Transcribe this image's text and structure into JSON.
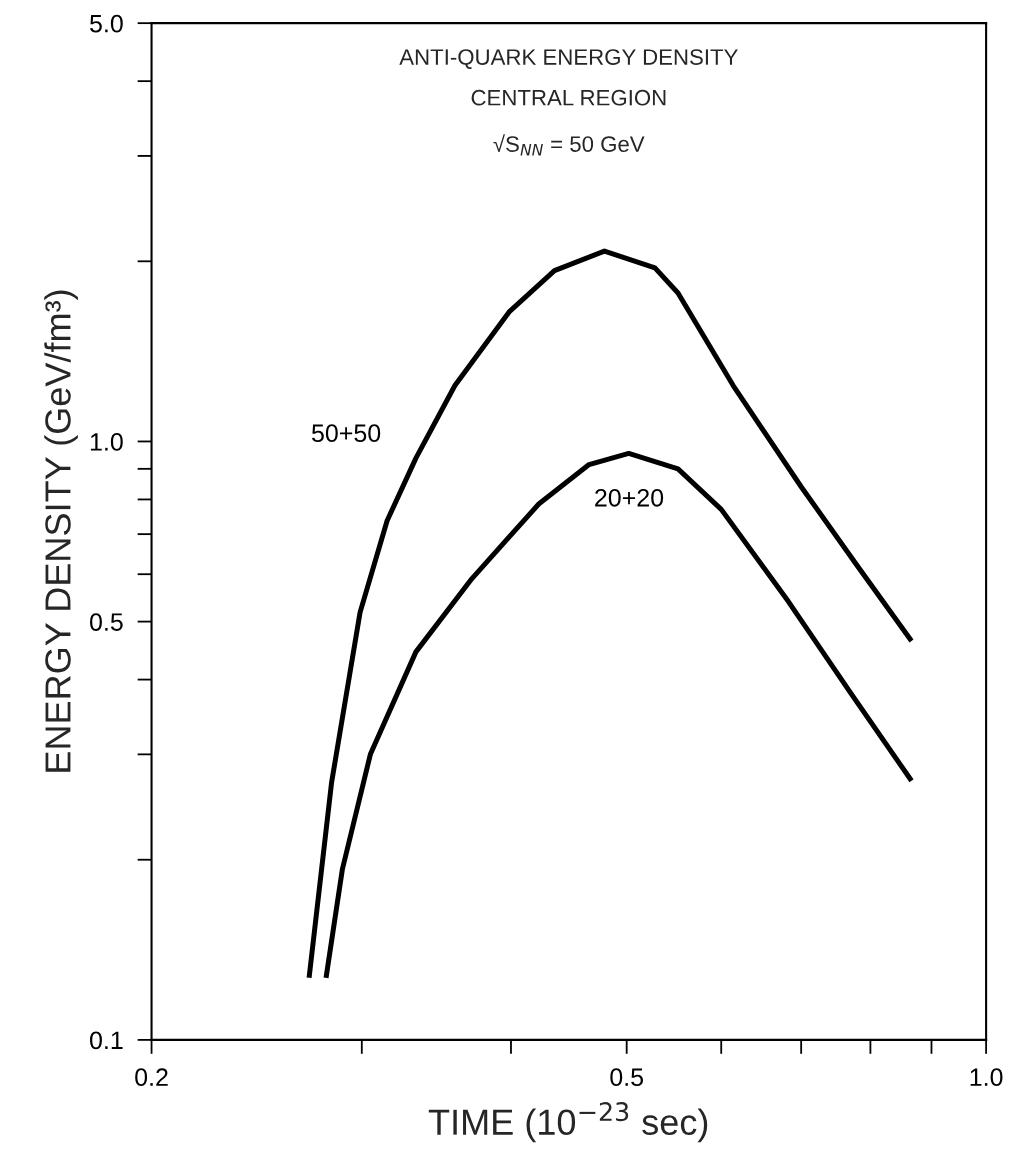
{
  "chart_data": {
    "type": "line",
    "title": "ANTI-QUARK ENERGY DENSITY",
    "subtitle": "CENTRAL REGION",
    "annotations": [
      "√S$_{NN}$ = 50 GeV"
    ],
    "xlabel": "TIME (10$^{−23}$ sec)",
    "ylabel": "ENERGY DENSITY (GeV/fm³)",
    "log": "xy",
    "grid": false,
    "legend": false,
    "marker": "none",
    "line_style": "solid",
    "xlim": [
      0.2,
      1.0
    ],
    "ylim": [
      0.1,
      5.0
    ],
    "xticks": [
      0.2,
      {
        "value": 0.3,
        "label": null
      },
      {
        "value": 0.4,
        "label": null
      },
      0.5,
      {
        "value": 0.6,
        "label": null
      },
      {
        "value": 0.7,
        "label": null
      },
      {
        "value": 0.8,
        "label": null
      },
      {
        "value": 0.9,
        "label": null
      },
      {
        "value": 1.0,
        "label": "1.0"
      }
    ],
    "yticks": [
      0.1,
      {
        "value": 0.2,
        "label": null
      },
      {
        "value": 0.3,
        "label": null
      },
      {
        "value": 0.4,
        "label": null
      },
      0.5,
      {
        "value": 0.6,
        "label": null
      },
      {
        "value": 0.7,
        "label": null
      },
      {
        "value": 0.8,
        "label": null
      },
      {
        "value": 0.9,
        "label": null
      },
      {
        "value": 1.0,
        "label": "1.0"
      },
      {
        "value": 2,
        "label": null
      },
      {
        "value": 3,
        "label": null
      },
      {
        "value": 4,
        "label": null
      },
      {
        "value": 5.0,
        "label": "5.0"
      }
    ],
    "series": [
      {
        "name": "50+50",
        "color": "#000000",
        "x": [
          0.271,
          0.283,
          0.299,
          0.315,
          0.333,
          0.359,
          0.399,
          0.435,
          0.479,
          0.528,
          0.552,
          0.614,
          0.7,
          0.78,
          0.866
        ],
        "values": [
          0.127,
          0.269,
          0.518,
          0.737,
          0.938,
          1.24,
          1.65,
          1.93,
          2.08,
          1.95,
          1.77,
          1.24,
          0.84,
          0.62,
          0.464
        ]
      },
      {
        "name": "20+20",
        "color": "#000000",
        "x": [
          0.28,
          0.289,
          0.305,
          0.333,
          0.371,
          0.422,
          0.465,
          0.502,
          0.552,
          0.6,
          0.683,
          0.77,
          0.866
        ],
        "values": [
          0.127,
          0.193,
          0.3,
          0.445,
          0.59,
          0.786,
          0.915,
          0.955,
          0.9,
          0.77,
          0.54,
          0.38,
          0.271
        ]
      }
    ]
  }
}
